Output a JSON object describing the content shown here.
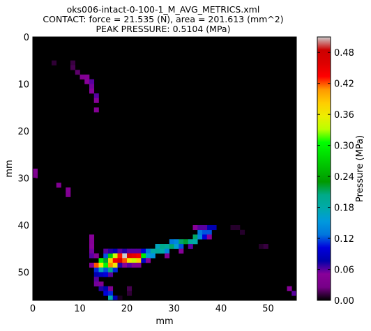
{
  "title_lines": [
    "oks006-intact-0-100-1_M_AVG_METRICS.xml",
    "CONTACT: force = 21.535 (N), area = 201.613 (mm^2)",
    "PEAK PRESSURE: 0.5104 (MPa)"
  ],
  "chart_data": {
    "type": "heatmap",
    "title": "oks006-intact-0-100-1_M_AVG_METRICS.xml\nCONTACT: force = 21.535 (N), area = 201.613 (mm^2)\nPEAK PRESSURE: 0.5104 (MPa)",
    "xlabel": "mm",
    "ylabel": "mm",
    "xlim": [
      0,
      56
    ],
    "ylim": [
      56,
      0
    ],
    "grid": false,
    "x_ticks": [
      0,
      10,
      20,
      30,
      40,
      50
    ],
    "y_ticks": [
      0,
      10,
      20,
      30,
      40,
      50
    ],
    "colorbar": {
      "label": "Pressure (MPa)",
      "range": [
        0,
        0.51
      ],
      "ticks": [
        "0.00",
        "0.06",
        "0.12",
        "0.18",
        "0.24",
        "0.30",
        "0.36",
        "0.42",
        "0.48"
      ],
      "colormap": "nipy_spectral"
    },
    "cells": [
      [
        4,
        5,
        0.01
      ],
      [
        8,
        5,
        0.012
      ],
      [
        8,
        6,
        0.015
      ],
      [
        9,
        7,
        0.02
      ],
      [
        10,
        8,
        0.04
      ],
      [
        11,
        8,
        0.045
      ],
      [
        11,
        9,
        0.05
      ],
      [
        12,
        9,
        0.06
      ],
      [
        12,
        10,
        0.055
      ],
      [
        12,
        11,
        0.05
      ],
      [
        13,
        12,
        0.06
      ],
      [
        13,
        13,
        0.05
      ],
      [
        13,
        15,
        0.045
      ],
      [
        0,
        28,
        0.04
      ],
      [
        0,
        29,
        0.035
      ],
      [
        5,
        31,
        0.04
      ],
      [
        7,
        32,
        0.045
      ],
      [
        7,
        33,
        0.04
      ],
      [
        12,
        42,
        0.05
      ],
      [
        12,
        43,
        0.045
      ],
      [
        12,
        44,
        0.05
      ],
      [
        12,
        45,
        0.055
      ],
      [
        12,
        46,
        0.06
      ],
      [
        13,
        46,
        0.045
      ],
      [
        12,
        48,
        0.05
      ],
      [
        13,
        48,
        0.09
      ],
      [
        13,
        49,
        0.11
      ],
      [
        13,
        50,
        0.08
      ],
      [
        13,
        51,
        0.06
      ],
      [
        13,
        52,
        0.055
      ],
      [
        14,
        52,
        0.04
      ],
      [
        14,
        53,
        0.07
      ],
      [
        15,
        53,
        0.08
      ],
      [
        15,
        54,
        0.1
      ],
      [
        16,
        54,
        0.11
      ],
      [
        16,
        55,
        0.18
      ],
      [
        17,
        55,
        0.08
      ],
      [
        16,
        53,
        0.04
      ],
      [
        14,
        47,
        0.3
      ],
      [
        13,
        48,
        0.42
      ],
      [
        14,
        48,
        0.36
      ],
      [
        14,
        49,
        0.17
      ],
      [
        15,
        49,
        0.12
      ],
      [
        14,
        50,
        0.09
      ],
      [
        15,
        50,
        0.1
      ],
      [
        16,
        50,
        0.06
      ],
      [
        15,
        46,
        0.12
      ],
      [
        15,
        47,
        0.22
      ],
      [
        15,
        48,
        0.3
      ],
      [
        16,
        46,
        0.27
      ],
      [
        16,
        47,
        0.38
      ],
      [
        16,
        48,
        0.41
      ],
      [
        16,
        49,
        0.2
      ],
      [
        17,
        49,
        0.11
      ],
      [
        15,
        45,
        0.06
      ],
      [
        16,
        45,
        0.07
      ],
      [
        17,
        45,
        0.08
      ],
      [
        17,
        46,
        0.34
      ],
      [
        17,
        47,
        0.44
      ],
      [
        17,
        48,
        0.36
      ],
      [
        18,
        48,
        0.06
      ],
      [
        18,
        45,
        0.06
      ],
      [
        18,
        46,
        0.43
      ],
      [
        18,
        47,
        0.46
      ],
      [
        18,
        48,
        0.07
      ],
      [
        19,
        45,
        0.07
      ],
      [
        19,
        46,
        0.51
      ],
      [
        19,
        47,
        0.42
      ],
      [
        19,
        48,
        0.05
      ],
      [
        20,
        45,
        0.06
      ],
      [
        20,
        46,
        0.46
      ],
      [
        20,
        47,
        0.36
      ],
      [
        20,
        48,
        0.06
      ],
      [
        21,
        45,
        0.06
      ],
      [
        21,
        46,
        0.45
      ],
      [
        21,
        47,
        0.34
      ],
      [
        21,
        48,
        0.04
      ],
      [
        22,
        45,
        0.06
      ],
      [
        22,
        46,
        0.44
      ],
      [
        22,
        47,
        0.38
      ],
      [
        22,
        48,
        0.04
      ],
      [
        23,
        45,
        0.1
      ],
      [
        23,
        46,
        0.29
      ],
      [
        23,
        47,
        0.09
      ],
      [
        24,
        45,
        0.13
      ],
      [
        24,
        46,
        0.16
      ],
      [
        24,
        47,
        0.05
      ],
      [
        25,
        45,
        0.18
      ],
      [
        25,
        46,
        0.15
      ],
      [
        26,
        44,
        0.17
      ],
      [
        26,
        45,
        0.19
      ],
      [
        27,
        44,
        0.2
      ],
      [
        27,
        45,
        0.18
      ],
      [
        28,
        44,
        0.19
      ],
      [
        28,
        45,
        0.14
      ],
      [
        29,
        44,
        0.21
      ],
      [
        29,
        43,
        0.13
      ],
      [
        30,
        43,
        0.14
      ],
      [
        30,
        44,
        0.16
      ],
      [
        31,
        43,
        0.21
      ],
      [
        31,
        44,
        0.12
      ],
      [
        32,
        43,
        0.22
      ],
      [
        33,
        43,
        0.19
      ],
      [
        34,
        42,
        0.21
      ],
      [
        34,
        43,
        0.18
      ],
      [
        35,
        42,
        0.14
      ],
      [
        35,
        41,
        0.13
      ],
      [
        36,
        41,
        0.12
      ],
      [
        36,
        42,
        0.1
      ],
      [
        37,
        41,
        0.12
      ],
      [
        37,
        40,
        0.08
      ],
      [
        38,
        40,
        0.08
      ],
      [
        33,
        44,
        0.06
      ],
      [
        31,
        45,
        0.05
      ],
      [
        28,
        46,
        0.04
      ],
      [
        34,
        40,
        0.05
      ],
      [
        35,
        40,
        0.06
      ],
      [
        36,
        40,
        0.06
      ],
      [
        37,
        42,
        0.05
      ],
      [
        42,
        40,
        0.008
      ],
      [
        43,
        40,
        0.008
      ],
      [
        44,
        41,
        0.008
      ],
      [
        48,
        44,
        0.008
      ],
      [
        49,
        44,
        0.012
      ],
      [
        54,
        53,
        0.05
      ],
      [
        55,
        54,
        0.06
      ],
      [
        20,
        53,
        0.015
      ],
      [
        20,
        54,
        0.01
      ],
      [
        18,
        55,
        0.006
      ]
    ]
  }
}
